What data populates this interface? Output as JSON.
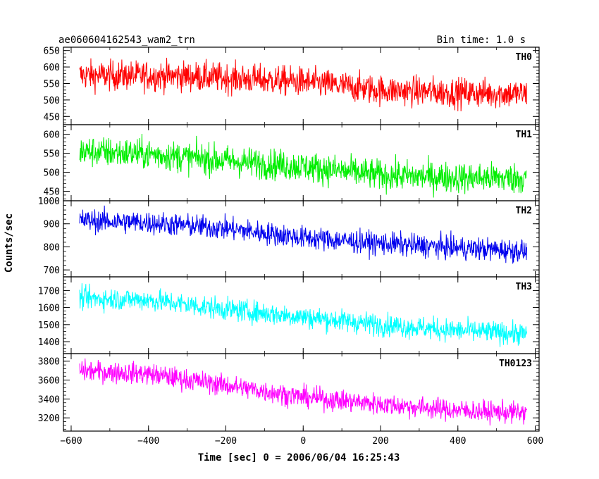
{
  "header": {
    "title": "ae060604162543_wam2_trn",
    "bin_time": "Bin time: 1.0 s"
  },
  "chart_data": {
    "type": "line",
    "xlabel": "Time [sec] 0 = 2006/06/04 16:25:43",
    "ylabel": "Counts/sec",
    "xlim": [
      -620,
      610
    ],
    "x_ticks": [
      -600,
      -400,
      -200,
      0,
      200,
      400,
      600
    ],
    "x_tick_labels": [
      "−600",
      "−400",
      "−200",
      "0",
      "200",
      "400",
      "600"
    ],
    "x_range_data": [
      -578,
      578
    ],
    "bin_time_s": 1.0,
    "series": [
      {
        "name": "TH0",
        "color": "#ff0000",
        "ylim": [
          425,
          660
        ],
        "y_ticks": [
          450,
          500,
          550,
          600,
          650
        ],
        "trend": [
          [
            -578,
            575
          ],
          [
            -300,
            572
          ],
          [
            0,
            555
          ],
          [
            200,
            530
          ],
          [
            400,
            522
          ],
          [
            578,
            518
          ]
        ],
        "noise_amplitude": 38
      },
      {
        "name": "TH1",
        "color": "#00ee00",
        "ylim": [
          425,
          625
        ],
        "y_ticks": [
          450,
          500,
          550,
          600
        ],
        "trend": [
          [
            -578,
            555
          ],
          [
            -400,
            548
          ],
          [
            -200,
            530
          ],
          [
            0,
            515
          ],
          [
            200,
            492
          ],
          [
            400,
            486
          ],
          [
            578,
            484
          ]
        ],
        "noise_amplitude": 34
      },
      {
        "name": "TH2",
        "color": "#0000ee",
        "ylim": [
          670,
          1000
        ],
        "y_ticks": [
          700,
          800,
          900,
          1000
        ],
        "trend": [
          [
            -578,
            915
          ],
          [
            -400,
            905
          ],
          [
            -200,
            880
          ],
          [
            0,
            840
          ],
          [
            200,
            815
          ],
          [
            400,
            795
          ],
          [
            578,
            782
          ]
        ],
        "noise_amplitude": 42
      },
      {
        "name": "TH3",
        "color": "#00ffff",
        "ylim": [
          1330,
          1780
        ],
        "y_ticks": [
          1400,
          1500,
          1600,
          1700
        ],
        "trend": [
          [
            -578,
            1655
          ],
          [
            -400,
            1645
          ],
          [
            -200,
            1590
          ],
          [
            0,
            1545
          ],
          [
            200,
            1500
          ],
          [
            400,
            1465
          ],
          [
            578,
            1445
          ]
        ],
        "noise_amplitude": 55
      },
      {
        "name": "TH0123",
        "color": "#ff00ff",
        "ylim": [
          3060,
          3880
        ],
        "y_ticks": [
          3200,
          3400,
          3600,
          3800
        ],
        "trend": [
          [
            -578,
            3700
          ],
          [
            -400,
            3665
          ],
          [
            -200,
            3545
          ],
          [
            0,
            3420
          ],
          [
            200,
            3345
          ],
          [
            400,
            3280
          ],
          [
            578,
            3250
          ]
        ],
        "noise_amplitude": 95
      }
    ]
  }
}
